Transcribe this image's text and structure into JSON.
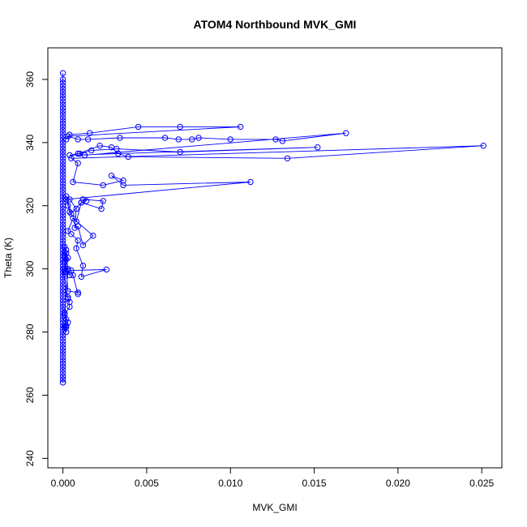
{
  "chart_data": {
    "type": "scatter",
    "title": "ATOM4 Northbound MVK_GMI",
    "xlabel": "MVK_GMI",
    "ylabel": "Theta (K)",
    "xlim": [
      -0.0009,
      0.0262
    ],
    "ylim": [
      237,
      370
    ],
    "x_ticks": [
      0.0,
      0.005,
      0.01,
      0.015,
      0.02,
      0.025
    ],
    "x_tick_labels": [
      "0.000",
      "0.005",
      "0.010",
      "0.015",
      "0.020",
      "0.025"
    ],
    "y_ticks": [
      240,
      260,
      280,
      300,
      320,
      340,
      360
    ],
    "y_tick_labels": [
      "240",
      "260",
      "280",
      "300",
      "320",
      "340",
      "360"
    ],
    "grid": false,
    "legend": "none",
    "style": "points-connected",
    "color": "#0000ff",
    "series": [
      {
        "x": [
          0.0,
          0.0,
          0.0,
          0.0,
          0.0,
          0.0,
          0.0,
          0.0,
          0.0,
          0.0,
          0.0,
          0.0,
          0.0,
          0.0,
          0.0,
          0.0,
          0.0,
          0.0,
          0.0,
          0.0,
          0.0,
          0.0,
          0.0,
          0.0,
          0.0,
          0.0,
          0.0,
          0.0,
          0.0,
          0.0,
          0.0,
          0.0,
          0.0,
          0.0,
          0.0,
          0.0,
          0.0,
          0.0,
          0.0,
          0.0,
          0.0,
          0.0,
          0.0,
          0.0,
          0.0,
          0.0,
          0.0,
          0.0,
          0.0,
          0.0,
          0.0,
          0.0,
          0.0,
          0.0,
          0.0,
          0.0,
          0.0,
          0.0,
          0.0,
          0.0,
          0.0,
          0.0,
          0.0,
          0.0,
          0.0,
          0.0,
          0.0,
          0.0,
          0.0,
          0.0,
          0.0,
          0.0,
          0.0,
          0.0,
          0.0,
          0.0,
          0.0,
          0.0,
          0.0,
          0.0,
          0.0,
          0.0,
          0.0,
          0.0,
          0.0,
          0.0,
          0.0,
          0.0,
          0.0,
          0.0,
          0.0,
          0.0,
          0.0,
          0.0,
          0.0,
          0.0,
          0.0,
          0.0,
          0.0,
          0.0,
          0.0003,
          0.0004,
          0.0003,
          0.0004,
          0.0001,
          0.0002,
          0.0002,
          0.0001,
          0.0002,
          0.0001,
          0.0002,
          0.0003,
          0.0001,
          0.0003,
          0.0004,
          0.0002,
          0.0001,
          0.0001,
          0.0002,
          0.0001,
          0.0002,
          0.0003,
          0.0001,
          0.0003,
          0.0001,
          0.0002,
          0.0001,
          0.0003,
          0.0009,
          0.0009,
          0.0006,
          0.0005,
          0.0026,
          0.0011,
          0.0012,
          0.0008,
          0.0009,
          0.0005,
          0.0003,
          0.0006,
          0.0018,
          0.0012,
          0.0009,
          0.0007,
          0.0008,
          0.0004,
          0.0002,
          0.0005,
          0.0011,
          0.0014,
          0.0012,
          0.0024,
          0.0023,
          0.0011,
          0.0008,
          0.0004,
          0.0003,
          0.0002,
          0.0112,
          0.0036,
          0.0029,
          0.0036,
          0.0024,
          0.0006,
          0.0009,
          0.0005,
          0.0251,
          0.0134,
          0.0039,
          0.0033,
          0.0029,
          0.0022,
          0.0009,
          0.0004,
          0.0152,
          0.007,
          0.0032,
          0.0017,
          0.001,
          0.0013,
          0.0169,
          0.0131,
          0.0127,
          0.01,
          0.0081,
          0.0077,
          0.0069,
          0.0061,
          0.0034,
          0.0015,
          0.0009,
          0.0003,
          0.0106,
          0.007,
          0.0045,
          0.0016,
          0.0004,
          0.0002
        ],
        "y": [
          362,
          360,
          358,
          356,
          354,
          352,
          350,
          348,
          346,
          344,
          342,
          340,
          338,
          336,
          334,
          332,
          330,
          328,
          326,
          324,
          322,
          320,
          318,
          316,
          314,
          312,
          310,
          308,
          306,
          304,
          302,
          300,
          298,
          296,
          294,
          292,
          290,
          288,
          286,
          284,
          282,
          280,
          278,
          276,
          274,
          272,
          270,
          268,
          266,
          264,
          359,
          355,
          351,
          347,
          343,
          339,
          335,
          331,
          327,
          323,
          319,
          315,
          311,
          307,
          303,
          299,
          295,
          291,
          287,
          283,
          279,
          275,
          271,
          267,
          357,
          353,
          349,
          345,
          341,
          337,
          333,
          329,
          325,
          321,
          317,
          313,
          309,
          305,
          301,
          297,
          293,
          289,
          285,
          281,
          277,
          273,
          269,
          265,
          264,
          300,
          290.5,
          289.5,
          291,
          288,
          285.5,
          284,
          282,
          281.5,
          281.5,
          282,
          280,
          283,
          286,
          299.5,
          298,
          299,
          300,
          304,
          303,
          302,
          305,
          300,
          299,
          303.5,
          305,
          306,
          307,
          293,
          292.5,
          292,
          298,
          299.5,
          299.8,
          297.5,
          301,
          306.5,
          309,
          311,
          312,
          316,
          310.5,
          307.5,
          313.5,
          313,
          319,
          322,
          323,
          317.5,
          321,
          321.5,
          322,
          321.5,
          319,
          321,
          315,
          318,
          320,
          322,
          327.5,
          326.5,
          329.5,
          328,
          326.5,
          327.5,
          333.5,
          335,
          339,
          335,
          335.5,
          336.5,
          338.5,
          339,
          336.5,
          336,
          338.5,
          337,
          338,
          337.5,
          336.5,
          336,
          343,
          340.5,
          341,
          341,
          341.5,
          341,
          341,
          341.5,
          341.5,
          341,
          341,
          342,
          345,
          345,
          345,
          343,
          342.5,
          341
        ]
      }
    ]
  }
}
